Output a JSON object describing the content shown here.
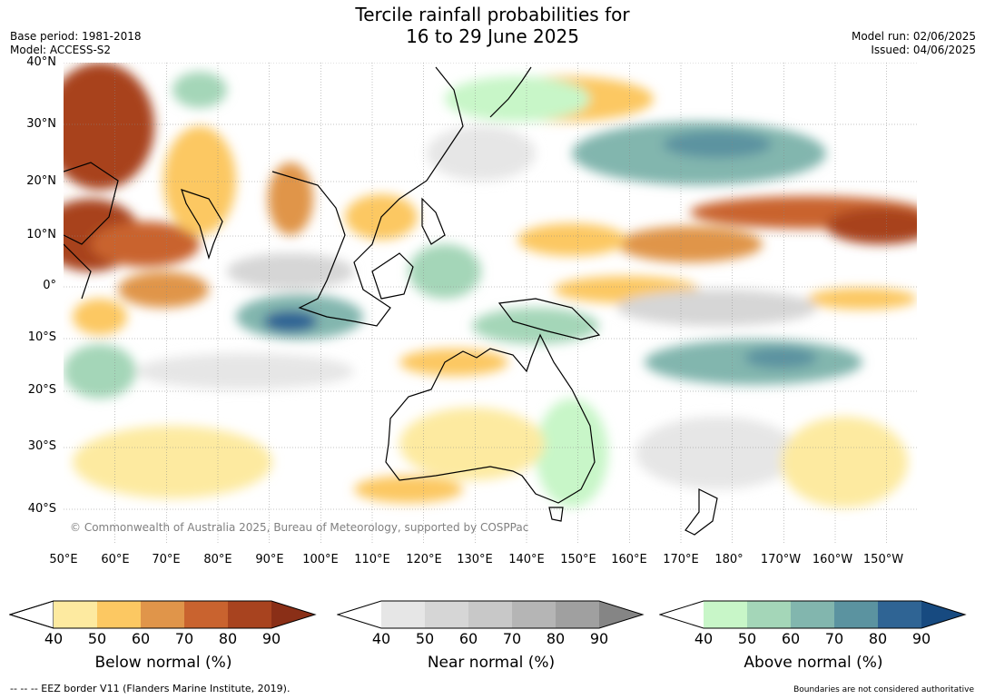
{
  "title_line1": "Tercile rainfall probabilities for",
  "title_line2": "16 to 29 June 2025",
  "meta_left": [
    "Base period: 1981-2018",
    "Model: ACCESS-S2"
  ],
  "meta_right": [
    "Model run: 02/06/2025",
    "Issued: 04/06/2025"
  ],
  "lat_labels": [
    "40°N",
    "30°N",
    "20°N",
    "10°N",
    "0°",
    "10°S",
    "20°S",
    "30°S",
    "40°S"
  ],
  "lon_labels": [
    "50°E",
    "60°E",
    "70°E",
    "80°E",
    "90°E",
    "100°E",
    "110°E",
    "120°E",
    "130°E",
    "140°E",
    "150°E",
    "160°E",
    "170°E",
    "180°",
    "170°W",
    "160°W",
    "150°W"
  ],
  "copyright": "© Commonwealth of Australia 2025, Bureau of Meteorology, supported by COSPPac",
  "legends": [
    {
      "label": "Below normal (%)",
      "ticks": [
        "40",
        "50",
        "60",
        "70",
        "80",
        "90"
      ],
      "colors": [
        "#fdeaa0",
        "#fcc862",
        "#e0954a",
        "#c9632f",
        "#a8431f",
        "#8a2f17"
      ]
    },
    {
      "label": "Near normal (%)",
      "ticks": [
        "40",
        "50",
        "60",
        "70",
        "80",
        "90"
      ],
      "colors": [
        "#e6e6e6",
        "#d6d6d6",
        "#c8c8c8",
        "#b5b5b5",
        "#a0a0a0",
        "#858585"
      ]
    },
    {
      "label": "Above normal (%)",
      "ticks": [
        "40",
        "50",
        "60",
        "70",
        "80",
        "90"
      ],
      "colors": [
        "#c8f6c8",
        "#a4d6b8",
        "#82b6ae",
        "#5b93a0",
        "#2f6494",
        "#174a80"
      ]
    }
  ],
  "footer_left": "--  --  -- EEZ border V11 (Flanders Marine Institute, 2019).",
  "footer_right": "Boundaries are not considered authoritative"
}
